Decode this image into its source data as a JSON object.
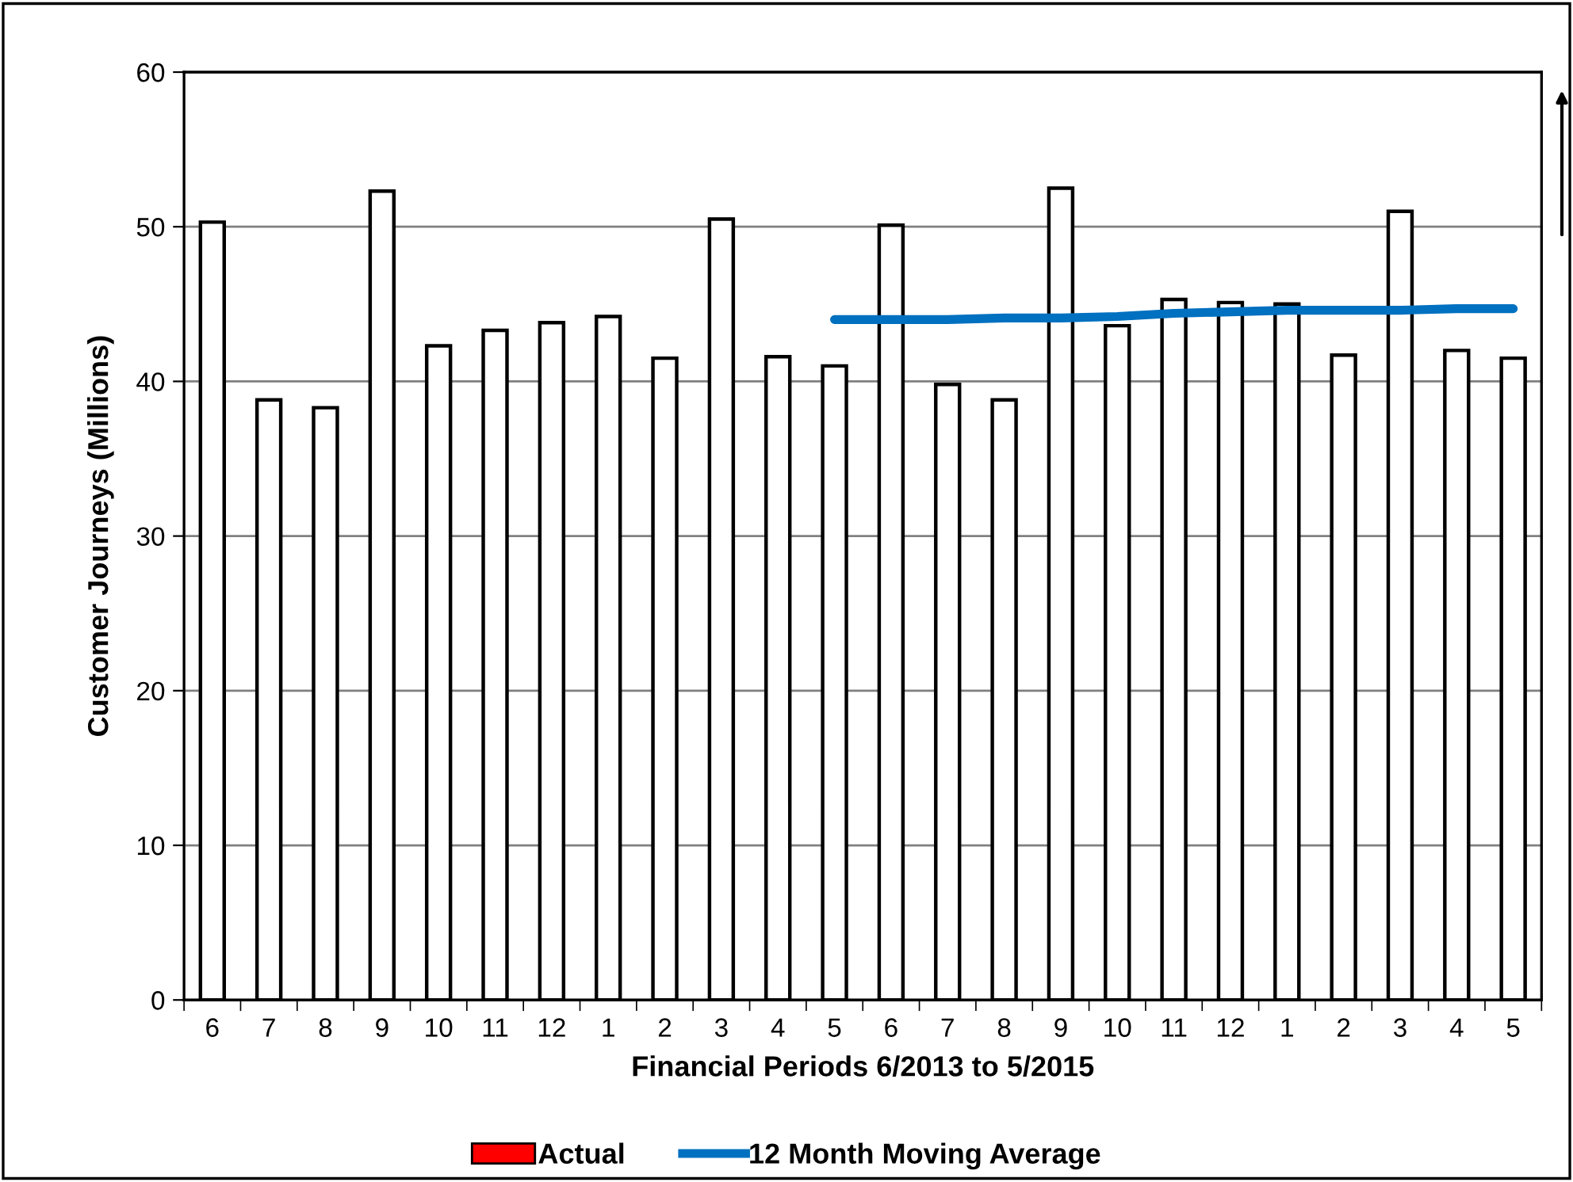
{
  "chart_data": {
    "type": "bar",
    "xlabel": "Financial Periods 6/2013 to 5/2015",
    "ylabel": "Customer Journeys (Millions)",
    "categories": [
      "6",
      "7",
      "8",
      "9",
      "10",
      "11",
      "12",
      "1",
      "2",
      "3",
      "4",
      "5",
      "6",
      "7",
      "8",
      "9",
      "10",
      "11",
      "12",
      "1",
      "2",
      "3",
      "4",
      "5"
    ],
    "series": [
      {
        "name": "Actual",
        "color": "#ff0000",
        "colors": [
          "#ffffff",
          "#ffffff",
          "#ffffff",
          "#ffffff",
          "#ffffff",
          "#ffffff",
          "#ffffff",
          "#ffffff",
          "#ffffff",
          "#ffffff",
          "#ffffff",
          "#ffffff",
          "#ffffff",
          "#ffffff",
          "#ffffff",
          "#ffffff",
          "#ffffff",
          "#ffffff",
          "#ffffff",
          "#ffffff",
          "#ffffff",
          "#ffffff",
          "#ffffff",
          "#ffffff"
        ],
        "values": [
          50.3,
          38.8,
          38.3,
          52.3,
          42.3,
          43.3,
          43.8,
          44.2,
          41.5,
          50.5,
          41.6,
          41.0,
          50.1,
          39.8,
          38.8,
          52.5,
          43.6,
          45.3,
          45.1,
          45.0,
          41.7,
          51.0,
          42.0,
          41.5
        ]
      },
      {
        "name": "12 Month Moving Average",
        "type": "line",
        "color": "#0070c0",
        "values": [
          null,
          null,
          null,
          null,
          null,
          null,
          null,
          null,
          null,
          null,
          null,
          44.0,
          44.0,
          44.0,
          44.1,
          44.1,
          44.2,
          44.4,
          44.5,
          44.6,
          44.6,
          44.6,
          44.7,
          44.7
        ]
      }
    ],
    "ylim": [
      0,
      60
    ],
    "yticks": [
      0,
      10,
      20,
      30,
      40,
      50,
      60
    ],
    "grid": "y",
    "legend": "bottom",
    "marker": "none",
    "line_style": "solid"
  }
}
